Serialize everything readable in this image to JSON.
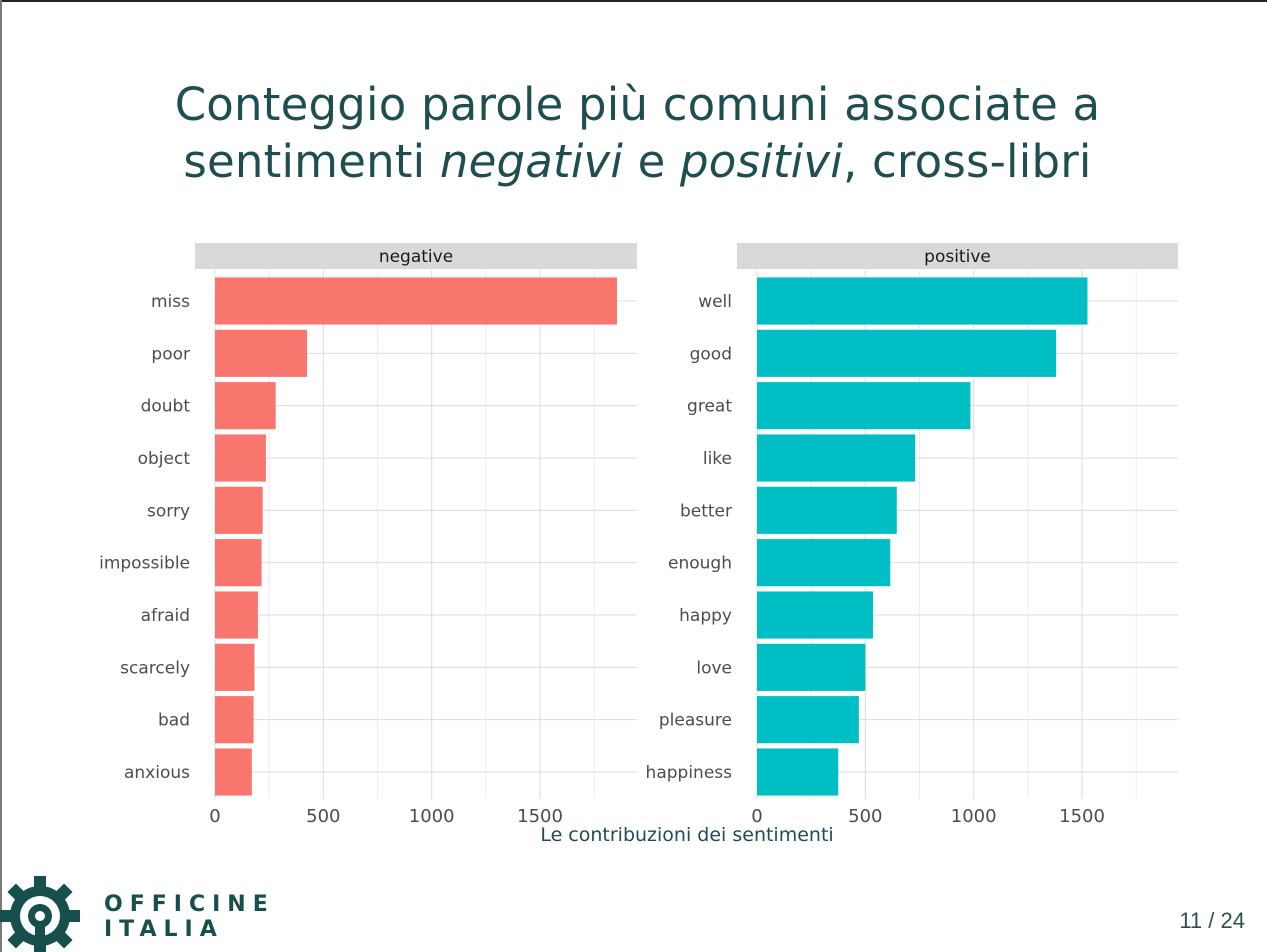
{
  "slide": {
    "title_line1": "Conteggio parole più comuni associate a",
    "title_line2_a": "sentimenti ",
    "title_line2_b": "negativi",
    "title_line2_c": " e ",
    "title_line2_d": "positivi",
    "title_line2_e": ", cross-libri",
    "page_current": "11",
    "page_sep": " / ",
    "page_total": "24"
  },
  "logo": {
    "line1": "OFFICINE",
    "line2": "ITALIA",
    "color": "#174f4c"
  },
  "chart_data": {
    "type": "bar",
    "orientation": "horizontal",
    "xlabel": "Le contribuzioni dei sentimenti",
    "x_ticks": [
      0,
      500,
      1000,
      1500
    ],
    "xlim": [
      0,
      1950
    ],
    "grid": true,
    "panels": [
      {
        "name": "negative",
        "color": "#f8766d",
        "categories": [
          "miss",
          "poor",
          "doubt",
          "object",
          "sorry",
          "impossible",
          "afraid",
          "scarcely",
          "bad",
          "anxious"
        ],
        "values": [
          1855,
          425,
          280,
          235,
          220,
          215,
          198,
          182,
          178,
          170
        ]
      },
      {
        "name": "positive",
        "color": "#00bfc4",
        "categories": [
          "well",
          "good",
          "great",
          "like",
          "better",
          "enough",
          "happy",
          "love",
          "pleasure",
          "happiness"
        ],
        "values": [
          1525,
          1380,
          985,
          730,
          645,
          615,
          535,
          500,
          470,
          375
        ]
      }
    ]
  }
}
